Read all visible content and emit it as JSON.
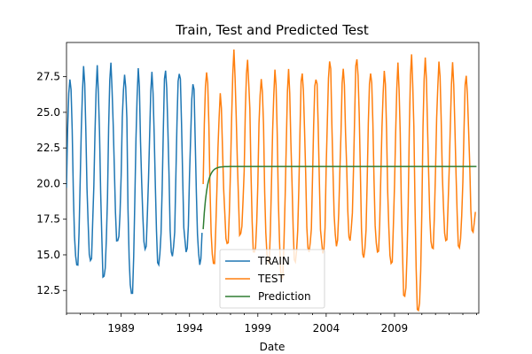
{
  "chart_data": {
    "type": "line",
    "title": "Train, Test and Predicted Test",
    "xlabel": "Date",
    "ylabel": "",
    "x_axis_type": "date",
    "xlim": [
      "1985-01-01",
      "2015-03-01"
    ],
    "ylim": [
      10.9,
      29.9
    ],
    "x_major_ticks": [
      "1989",
      "1994",
      "1999",
      "2004",
      "2009"
    ],
    "y_ticks": [
      "12.5",
      "15.0",
      "17.5",
      "20.0",
      "22.5",
      "25.0",
      "27.5"
    ],
    "y_tick_values": [
      12.5,
      15.0,
      17.5,
      20.0,
      22.5,
      25.0,
      27.5
    ],
    "grid": false,
    "legend_position": "lower-center",
    "series": [
      {
        "name": "TRAIN",
        "color": "#1f77b4",
        "date_range": [
          "1985-01",
          "1994-12"
        ],
        "frequency": "monthly",
        "seasonal_peaks": [
          27.6,
          28.0,
          27.8,
          28.4,
          27.8,
          27.9,
          27.5,
          28.1,
          28.2,
          27.1
        ],
        "seasonal_troughs": [
          14.3,
          14.6,
          13.5,
          16.0,
          12.3,
          15.4,
          14.3,
          14.9,
          15.2,
          14.3
        ]
      },
      {
        "name": "TEST",
        "color": "#ff7f0e",
        "date_range": [
          "1995-01",
          "2015-01"
        ],
        "frequency": "monthly",
        "seasonal_peaks": [
          28.1,
          26.1,
          28.9,
          28.6,
          27.5,
          27.8,
          27.7,
          27.9,
          27.8,
          28.7,
          27.9,
          28.9,
          28.1,
          27.8,
          28.0,
          28.9,
          29.0,
          28.4,
          28.1,
          27.6
        ],
        "seasonal_troughs": [
          14.4,
          15.8,
          16.5,
          15.2,
          14.5,
          13.3,
          14.5,
          15.2,
          15.1,
          15.6,
          16.0,
          14.8,
          15.2,
          14.4,
          12.1,
          11.1,
          15.5,
          16.0,
          15.5,
          16.6
        ]
      },
      {
        "name": "Prediction",
        "color": "#2e7d32",
        "date_range": [
          "1995-01",
          "2015-01"
        ],
        "frequency": "monthly",
        "start_value": 16.8,
        "plateau_value": 21.2
      }
    ]
  }
}
